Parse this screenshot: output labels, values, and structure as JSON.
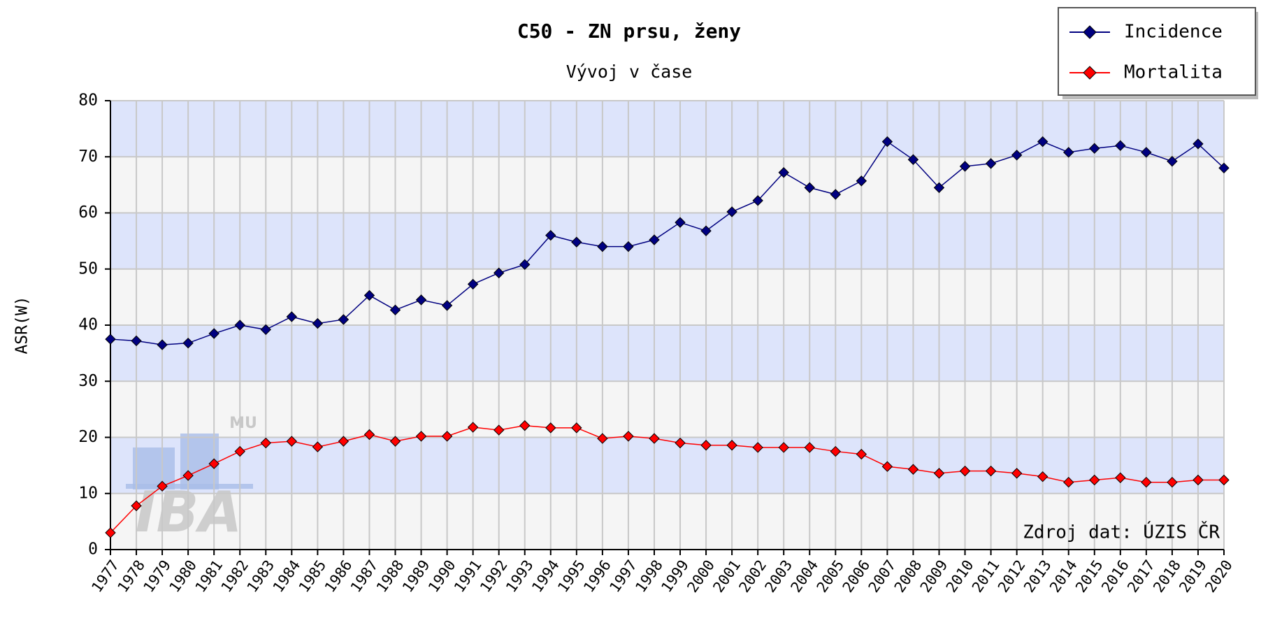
{
  "chart_data": {
    "type": "line",
    "title": "C50 - ZN prsu, ženy",
    "subtitle": "Vývoj v čase",
    "y_label": "ASR(W)",
    "categories": [
      "1977",
      "1978",
      "1979",
      "1980",
      "1981",
      "1982",
      "1983",
      "1984",
      "1985",
      "1986",
      "1987",
      "1988",
      "1989",
      "1990",
      "1991",
      "1992",
      "1993",
      "1994",
      "1995",
      "1996",
      "1997",
      "1998",
      "1999",
      "2000",
      "2001",
      "2002",
      "2003",
      "2004",
      "2005",
      "2006",
      "2007",
      "2008",
      "2009",
      "2010",
      "2011",
      "2012",
      "2013",
      "2014",
      "2015",
      "2016",
      "2017",
      "2018",
      "2019",
      "2020"
    ],
    "series": [
      {
        "name": "Incidence",
        "color": "#000080",
        "values": [
          37.5,
          37.2,
          36.5,
          36.8,
          38.5,
          40,
          39.2,
          41.5,
          40.3,
          41,
          45.3,
          42.7,
          44.5,
          43.5,
          47.3,
          49.3,
          50.8,
          56,
          54.8,
          54,
          54,
          55.2,
          58.3,
          56.8,
          60.2,
          62.2,
          67.2,
          64.5,
          63.3,
          65.7,
          72.7,
          69.5,
          64.5,
          68.3,
          68.8,
          70.3,
          72.7,
          70.8,
          71.5,
          72,
          70.8,
          69.2,
          72.3,
          68
        ]
      },
      {
        "name": "Mortalita",
        "color": "#ff0000",
        "values": [
          3,
          7.8,
          11.3,
          13.2,
          15.3,
          17.5,
          19,
          19.3,
          18.3,
          19.3,
          20.5,
          19.3,
          20.2,
          20.2,
          21.8,
          21.3,
          22.1,
          21.7,
          21.7,
          19.8,
          20.2,
          19.8,
          19,
          18.6,
          18.6,
          18.2,
          18.2,
          18.2,
          17.5,
          17,
          14.8,
          14.3,
          13.6,
          14,
          14,
          13.6,
          13,
          12,
          12.4,
          12.8,
          12,
          12,
          12.4,
          12.4
        ]
      }
    ],
    "ylim": [
      0,
      80
    ],
    "yticks": [
      0,
      10,
      20,
      30,
      40,
      50,
      60,
      70,
      80
    ],
    "grid": true,
    "legend": "top-right",
    "band_colors": [
      "#f5f5f5",
      "#dde4fb"
    ],
    "annotations": [
      "Zdroj dat: ÚZIS ČR"
    ],
    "watermark": [
      "MU",
      "IBA"
    ]
  }
}
